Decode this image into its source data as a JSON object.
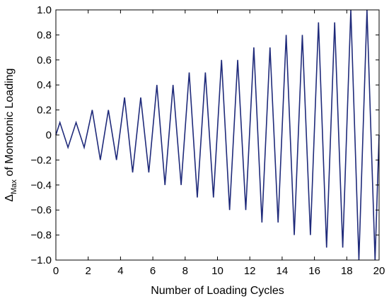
{
  "chart_data": {
    "type": "line",
    "xlabel": "Number of Loading Cycles",
    "ylabel_main": "Δ",
    "ylabel_sub": "Max",
    "ylabel_rest": " of Monotonic Loading",
    "xlim": [
      0,
      20
    ],
    "ylim": [
      -1.0,
      1.0
    ],
    "xticks": [
      0,
      2,
      4,
      6,
      8,
      10,
      12,
      14,
      16,
      18,
      20
    ],
    "xtick_labels": [
      "0",
      "2",
      "4",
      "6",
      "8",
      "10",
      "12",
      "14",
      "16",
      "18",
      "20"
    ],
    "yticks": [
      -1.0,
      -0.8,
      -0.6,
      -0.4,
      -0.2,
      0,
      0.2,
      0.4,
      0.6,
      0.8,
      1.0
    ],
    "ytick_labels": [
      "−1.0",
      "−0.8",
      "−0.6",
      "−0.4",
      "−0.2",
      "0",
      "0.2",
      "0.4",
      "0.6",
      "0.8",
      "1.0"
    ],
    "grid": false,
    "line_color": "#1f2a7a",
    "series": [
      {
        "x": [
          0,
          0.25,
          0.75,
          1.25,
          1.75,
          2.25,
          2.75,
          3.25,
          3.75,
          4.25,
          4.75,
          5.25,
          5.75,
          6.25,
          6.75,
          7.25,
          7.75,
          8.25,
          8.75,
          9.25,
          9.75,
          10.25,
          10.75,
          11.25,
          11.75,
          12.25,
          12.75,
          13.25,
          13.75,
          14.25,
          14.75,
          15.25,
          15.75,
          16.25,
          16.75,
          17.25,
          17.75,
          18.25,
          18.75,
          19.25,
          19.75,
          20
        ],
        "y": [
          0,
          0.1,
          -0.1,
          0.1,
          -0.1,
          0.2,
          -0.2,
          0.2,
          -0.2,
          0.3,
          -0.3,
          0.3,
          -0.3,
          0.4,
          -0.4,
          0.4,
          -0.4,
          0.5,
          -0.5,
          0.5,
          -0.5,
          0.6,
          -0.6,
          0.6,
          -0.6,
          0.7,
          -0.7,
          0.7,
          -0.7,
          0.8,
          -0.8,
          0.8,
          -0.8,
          0.9,
          -0.9,
          0.9,
          -0.9,
          1.0,
          -1.0,
          1.0,
          -1.0,
          0
        ]
      }
    ]
  }
}
